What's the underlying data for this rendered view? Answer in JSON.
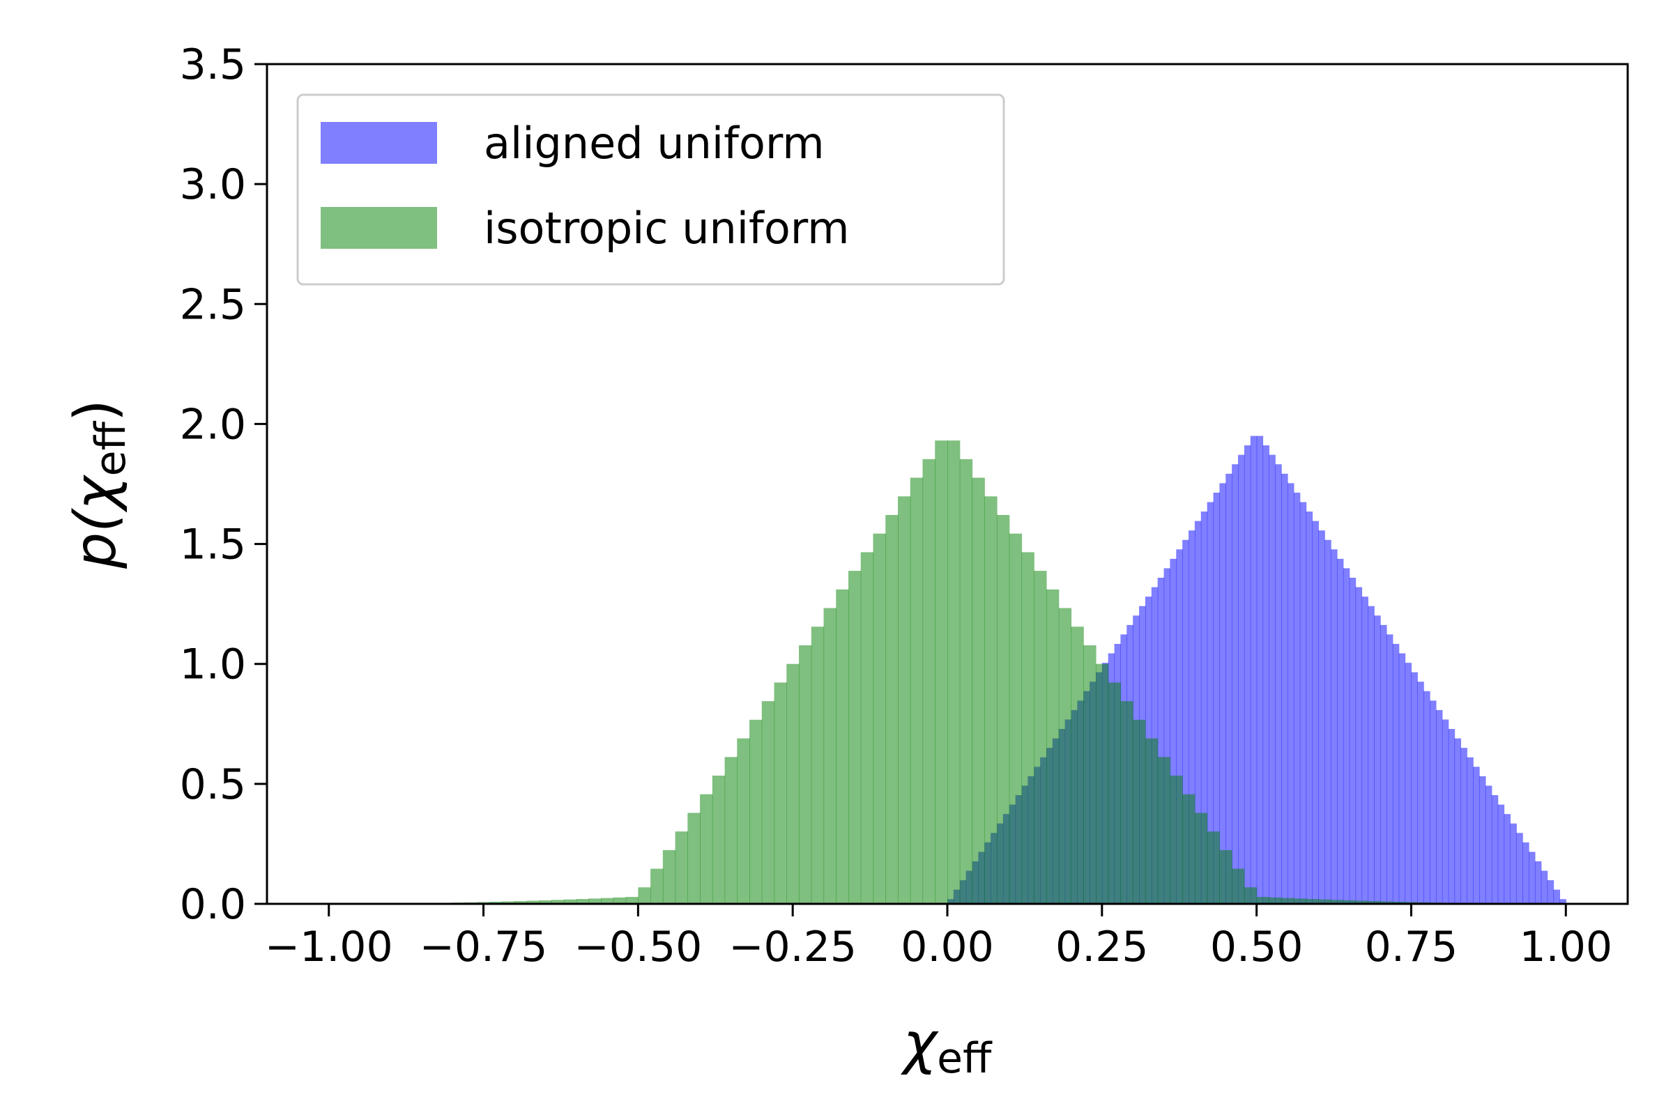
{
  "chart_data": {
    "type": "histogram",
    "xlabel": "χ",
    "xlabel_sub": "eff",
    "ylabel_prefix": "p(χ",
    "ylabel_sub": "eff",
    "ylabel_suffix": ")",
    "xlim": [
      -1.1,
      1.1
    ],
    "ylim": [
      0,
      3.5
    ],
    "xticks": [
      -1.0,
      -0.75,
      -0.5,
      -0.25,
      0.0,
      0.25,
      0.5,
      0.75,
      1.0
    ],
    "xtick_labels": [
      "−1.00",
      "−0.75",
      "−0.50",
      "−0.25",
      "0.00",
      "0.25",
      "0.50",
      "0.75",
      "1.00"
    ],
    "yticks": [
      0,
      0.5,
      1.0,
      1.5,
      2.0,
      2.5,
      3.0,
      3.5
    ],
    "ytick_labels": [
      "0.0",
      "0.5",
      "1.0",
      "1.5",
      "2.0",
      "2.5",
      "3.0",
      "3.5"
    ],
    "grid": false,
    "legend_position": "top-left",
    "bins": 100,
    "series": [
      {
        "name": "aligned uniform",
        "color": "#0000ff",
        "opacity": 0.5,
        "range": [
          0.0,
          1.0
        ],
        "shape": "triangular",
        "peak_x": 0.5,
        "peak_y": 1.97
      },
      {
        "name": "isotropic uniform",
        "color": "#008000",
        "opacity": 0.5,
        "range": [
          -1.0,
          1.0
        ],
        "shape": "peaked",
        "peak_x": 0.0,
        "peak_y": 1.97
      }
    ]
  }
}
